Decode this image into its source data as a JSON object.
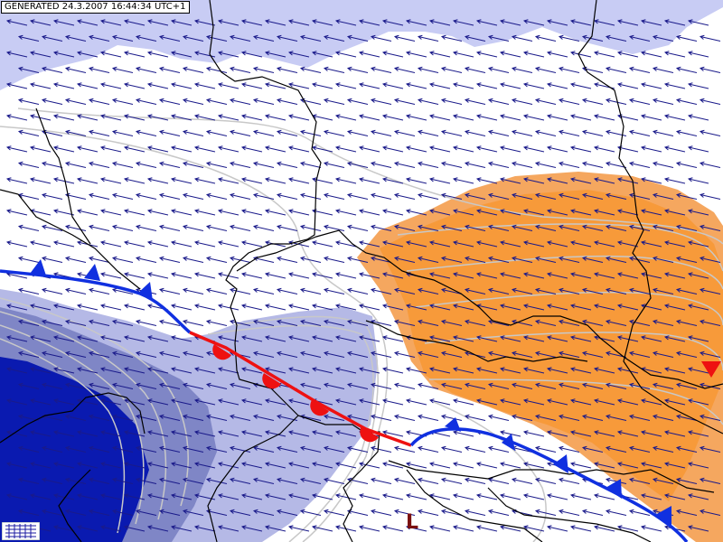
{
  "header": {
    "generated_label": "GENERATED 24.3.2007 16:44:34 UTC+1"
  },
  "pressure_centers": [
    {
      "label": "L"
    }
  ],
  "colors": {
    "sea": "#c8ccf4",
    "land": "#ffffff",
    "precip_light": "#f5a75f",
    "precip_core": "#f79a3a",
    "cold_dense": "#0a1ab0",
    "cold_mid": "#7f86c6",
    "cold_light": "#b5b9e6",
    "wind": "#1a1a8a",
    "isobar": "#c8c8c8",
    "border": "#000000",
    "cold_front": "#1030e0",
    "warm_front": "#ee1111",
    "low_label": "#7a1010"
  },
  "wind_field": {
    "direction": "from east-southeast"
  },
  "fronts": [
    {
      "type": "cold"
    },
    {
      "type": "warm"
    },
    {
      "type": "cold"
    }
  ]
}
